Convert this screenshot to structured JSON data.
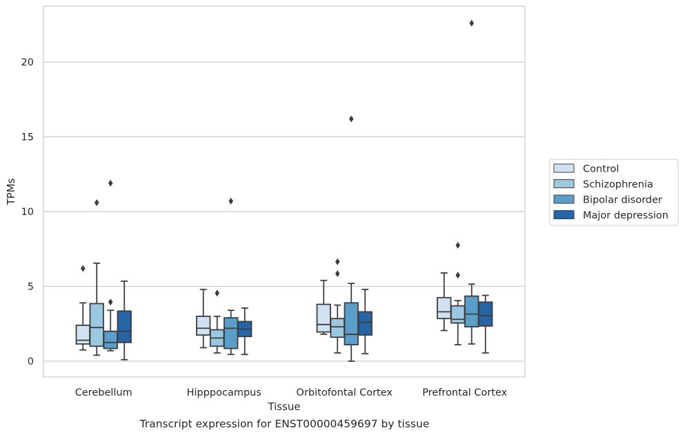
{
  "chart_data": {
    "type": "box",
    "xlabel": "Tissue",
    "ylabel": "TPMs",
    "ylim": [
      -1.1,
      23.5
    ],
    "yticks": [
      0,
      5,
      10,
      15,
      20
    ],
    "grid": "horizontal",
    "legend_placement": "right-outside",
    "categories": [
      "Cerebellum",
      "Hipppocampus",
      "Orbitofontal Cortex",
      "Prefrontal Cortex"
    ],
    "series": [
      {
        "name": "Control",
        "color": "#d0e1f2",
        "boxes": [
          {
            "low": 0.75,
            "q1": 1.15,
            "median": 1.4,
            "q3": 2.4,
            "high": 3.9,
            "outliers": [
              6.2
            ]
          },
          {
            "low": 0.9,
            "q1": 1.75,
            "median": 2.2,
            "q3": 3.0,
            "high": 4.8,
            "outliers": []
          },
          {
            "low": 1.8,
            "q1": 1.95,
            "median": 2.45,
            "q3": 3.8,
            "high": 5.4,
            "outliers": []
          },
          {
            "low": 2.05,
            "q1": 2.85,
            "median": 3.3,
            "q3": 4.25,
            "high": 5.9,
            "outliers": []
          }
        ]
      },
      {
        "name": "Schizophrenia",
        "color": "#9ac8e0",
        "boxes": [
          {
            "low": 0.4,
            "q1": 1.0,
            "median": 2.25,
            "q3": 3.85,
            "high": 6.55,
            "outliers": [
              10.6
            ]
          },
          {
            "low": 0.55,
            "q1": 1.0,
            "median": 1.55,
            "q3": 2.1,
            "high": 3.0,
            "outliers": [
              4.55
            ]
          },
          {
            "low": 0.55,
            "q1": 1.6,
            "median": 2.3,
            "q3": 2.85,
            "high": 3.75,
            "outliers": [
              6.65,
              5.85
            ]
          },
          {
            "low": 1.1,
            "q1": 2.55,
            "median": 2.8,
            "q3": 3.7,
            "high": 4.05,
            "outliers": [
              7.75,
              5.75
            ]
          }
        ]
      },
      {
        "name": "Bipolar disorder",
        "color": "#5a9ec9",
        "boxes": [
          {
            "low": 0.7,
            "q1": 0.85,
            "median": 1.25,
            "q3": 2.0,
            "high": 3.4,
            "outliers": [
              3.95,
              11.9
            ]
          },
          {
            "low": 0.45,
            "q1": 0.85,
            "median": 2.2,
            "q3": 2.9,
            "high": 3.4,
            "outliers": [
              10.7
            ]
          },
          {
            "low": 0.0,
            "q1": 1.1,
            "median": 1.8,
            "q3": 3.9,
            "high": 5.2,
            "outliers": [
              16.2
            ]
          },
          {
            "low": 1.15,
            "q1": 2.3,
            "median": 3.15,
            "q3": 4.35,
            "high": 5.15,
            "outliers": [
              22.6
            ]
          }
        ]
      },
      {
        "name": "Major depression",
        "color": "#2565a5",
        "boxes": [
          {
            "low": 0.1,
            "q1": 1.25,
            "median": 2.0,
            "q3": 3.35,
            "high": 5.35,
            "outliers": []
          },
          {
            "low": 0.45,
            "q1": 1.65,
            "median": 2.15,
            "q3": 2.65,
            "high": 3.55,
            "outliers": []
          },
          {
            "low": 0.5,
            "q1": 1.75,
            "median": 2.6,
            "q3": 3.3,
            "high": 4.8,
            "outliers": []
          },
          {
            "low": 0.55,
            "q1": 2.35,
            "median": 3.05,
            "q3": 3.95,
            "high": 4.4,
            "outliers": []
          }
        ]
      }
    ]
  },
  "caption": "Transcript expression for ENST00000459697 by tissue"
}
